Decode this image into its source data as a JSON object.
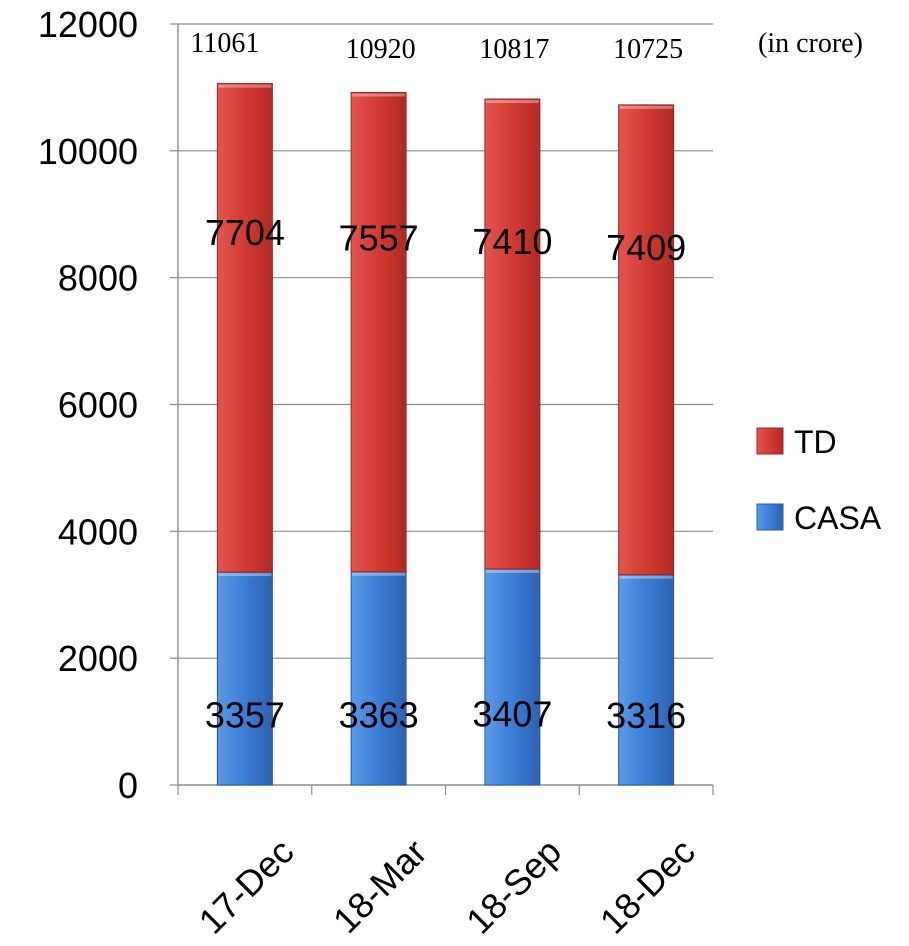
{
  "chart_data": {
    "type": "bar",
    "stacked": true,
    "categories": [
      "17-Dec",
      "18-Mar",
      "18-Sep",
      "18-Dec"
    ],
    "series": [
      {
        "name": "CASA",
        "values": [
          3357,
          3363,
          3407,
          3316
        ],
        "color": "#3c7dd6"
      },
      {
        "name": "TD",
        "values": [
          7704,
          7557,
          7410,
          7409
        ],
        "color": "#c8312b"
      }
    ],
    "totals": [
      11061,
      10920,
      10817,
      10725
    ],
    "unit_note": "(in crore)",
    "ylim": [
      0,
      12000
    ],
    "yticks": [
      0,
      2000,
      4000,
      6000,
      8000,
      10000,
      12000
    ],
    "grid": true,
    "legend_position": "right",
    "legend_order": [
      "TD",
      "CASA"
    ]
  }
}
